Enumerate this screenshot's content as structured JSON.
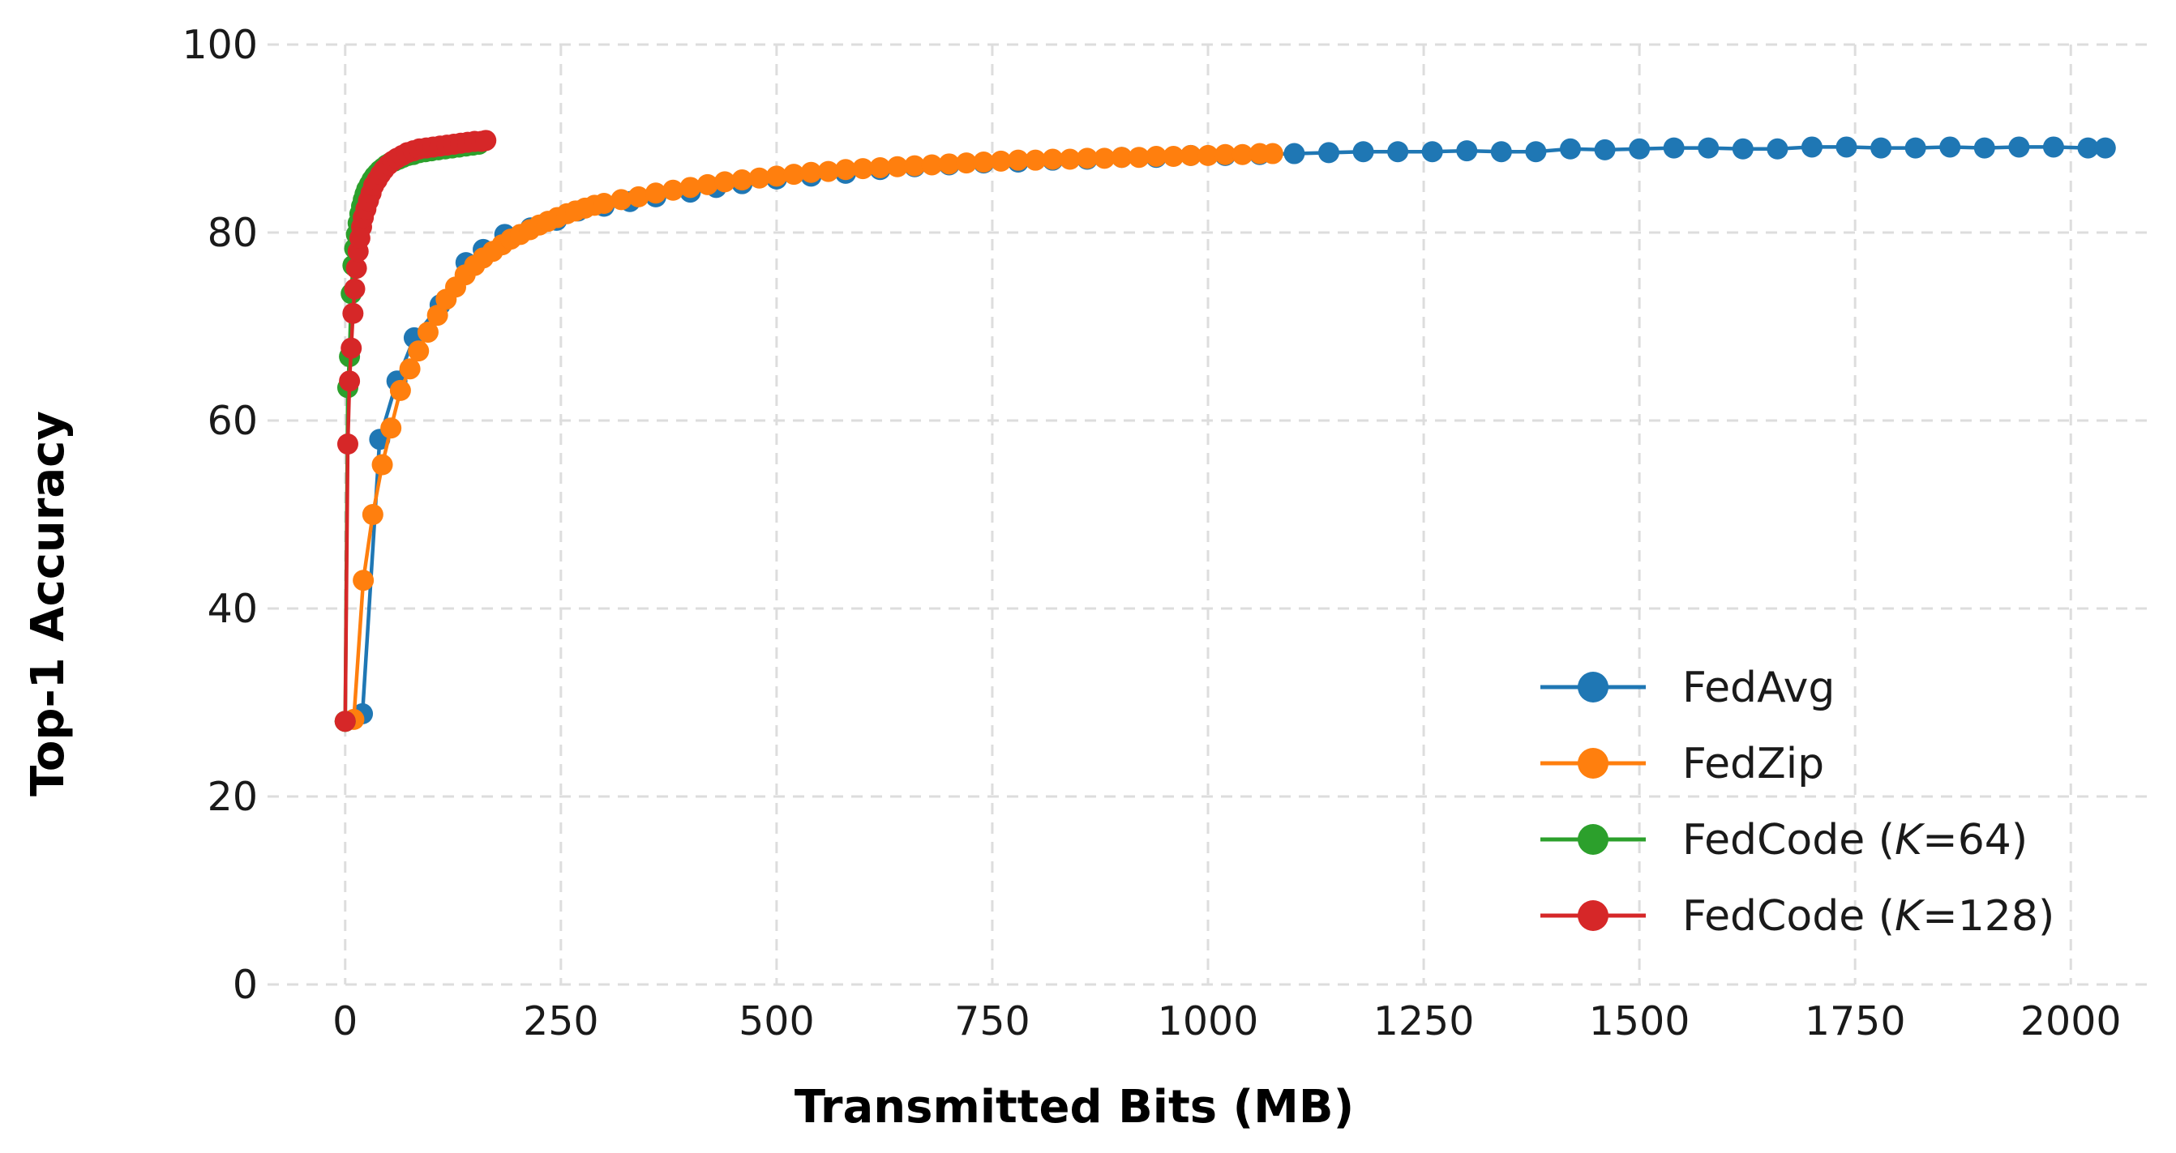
{
  "chart_data": {
    "type": "line",
    "xlabel": "Transmitted Bits (MB)",
    "ylabel": "Top-1 Accuracy",
    "xlim": [
      -90,
      2090
    ],
    "ylim": [
      0,
      100
    ],
    "x_ticks": [
      0,
      250,
      500,
      750,
      1000,
      1250,
      1500,
      1750,
      2000
    ],
    "y_ticks": [
      0,
      20,
      40,
      60,
      80,
      100
    ],
    "grid": true,
    "legend_position": "lower-right",
    "series": [
      {
        "name": "FedAvg",
        "color": "#1f77b4",
        "points": [
          [
            0,
            28
          ],
          [
            20,
            28.8
          ],
          [
            40,
            58
          ],
          [
            60,
            64.2
          ],
          [
            80,
            68.8
          ],
          [
            110,
            72.3
          ],
          [
            140,
            76.8
          ],
          [
            160,
            78.2
          ],
          [
            185,
            79.8
          ],
          [
            215,
            80.5
          ],
          [
            245,
            81.3
          ],
          [
            270,
            82.3
          ],
          [
            300,
            82.8
          ],
          [
            330,
            83.3
          ],
          [
            360,
            83.8
          ],
          [
            400,
            84.3
          ],
          [
            430,
            84.8
          ],
          [
            460,
            85.2
          ],
          [
            500,
            85.7
          ],
          [
            540,
            86
          ],
          [
            580,
            86.3
          ],
          [
            620,
            86.7
          ],
          [
            660,
            87
          ],
          [
            700,
            87.2
          ],
          [
            740,
            87.4
          ],
          [
            780,
            87.5
          ],
          [
            820,
            87.7
          ],
          [
            860,
            87.8
          ],
          [
            900,
            88
          ],
          [
            940,
            88
          ],
          [
            980,
            88.2
          ],
          [
            1020,
            88.2
          ],
          [
            1060,
            88.3
          ],
          [
            1100,
            88.4
          ],
          [
            1140,
            88.5
          ],
          [
            1180,
            88.6
          ],
          [
            1220,
            88.6
          ],
          [
            1260,
            88.6
          ],
          [
            1300,
            88.7
          ],
          [
            1340,
            88.6
          ],
          [
            1380,
            88.6
          ],
          [
            1420,
            88.9
          ],
          [
            1460,
            88.8
          ],
          [
            1500,
            88.9
          ],
          [
            1540,
            89
          ],
          [
            1580,
            89
          ],
          [
            1620,
            88.9
          ],
          [
            1660,
            88.9
          ],
          [
            1700,
            89.1
          ],
          [
            1740,
            89.1
          ],
          [
            1780,
            89
          ],
          [
            1820,
            89
          ],
          [
            1860,
            89.1
          ],
          [
            1900,
            89
          ],
          [
            1940,
            89.1
          ],
          [
            1980,
            89.1
          ],
          [
            2020,
            89
          ],
          [
            2040,
            89
          ]
        ]
      },
      {
        "name": "FedZip",
        "color": "#ff7f0e",
        "points": [
          [
            0,
            28
          ],
          [
            10,
            28.2
          ],
          [
            21,
            43
          ],
          [
            32,
            50
          ],
          [
            43,
            55.3
          ],
          [
            53,
            59.2
          ],
          [
            64,
            63.2
          ],
          [
            75,
            65.5
          ],
          [
            85,
            67.4
          ],
          [
            96,
            69.4
          ],
          [
            107,
            71.2
          ],
          [
            117,
            72.9
          ],
          [
            128,
            74.2
          ],
          [
            139,
            75.5
          ],
          [
            150,
            76.5
          ],
          [
            160,
            77.3
          ],
          [
            171,
            78
          ],
          [
            182,
            78.7
          ],
          [
            192,
            79.3
          ],
          [
            203,
            79.8
          ],
          [
            214,
            80.3
          ],
          [
            225,
            80.8
          ],
          [
            235,
            81.2
          ],
          [
            246,
            81.6
          ],
          [
            257,
            82
          ],
          [
            267,
            82.3
          ],
          [
            278,
            82.6
          ],
          [
            289,
            82.9
          ],
          [
            300,
            83.1
          ],
          [
            320,
            83.5
          ],
          [
            340,
            83.8
          ],
          [
            360,
            84.2
          ],
          [
            380,
            84.5
          ],
          [
            400,
            84.8
          ],
          [
            420,
            85.1
          ],
          [
            440,
            85.4
          ],
          [
            460,
            85.6
          ],
          [
            480,
            85.8
          ],
          [
            500,
            86
          ],
          [
            520,
            86.2
          ],
          [
            540,
            86.4
          ],
          [
            560,
            86.5
          ],
          [
            580,
            86.7
          ],
          [
            600,
            86.8
          ],
          [
            620,
            86.9
          ],
          [
            640,
            87
          ],
          [
            660,
            87.1
          ],
          [
            680,
            87.2
          ],
          [
            700,
            87.3
          ],
          [
            720,
            87.4
          ],
          [
            740,
            87.5
          ],
          [
            760,
            87.6
          ],
          [
            780,
            87.7
          ],
          [
            800,
            87.7
          ],
          [
            820,
            87.8
          ],
          [
            840,
            87.8
          ],
          [
            860,
            87.9
          ],
          [
            880,
            87.9
          ],
          [
            900,
            88
          ],
          [
            920,
            88
          ],
          [
            940,
            88.1
          ],
          [
            960,
            88.1
          ],
          [
            980,
            88.2
          ],
          [
            1000,
            88.2
          ],
          [
            1020,
            88.3
          ],
          [
            1040,
            88.3
          ],
          [
            1060,
            88.4
          ],
          [
            1075,
            88.4
          ]
        ]
      },
      {
        "name": "FedCode (K=64)",
        "color": "#2ca02c",
        "points": [
          [
            0,
            28
          ],
          [
            3,
            63.5
          ],
          [
            5,
            66.8
          ],
          [
            7,
            73.5
          ],
          [
            9,
            76.5
          ],
          [
            11,
            78.3
          ],
          [
            13,
            79.8
          ],
          [
            15,
            81
          ],
          [
            17,
            82
          ],
          [
            19,
            82.8
          ],
          [
            21,
            83.5
          ],
          [
            23,
            84.1
          ],
          [
            25,
            84.6
          ],
          [
            28,
            85.1
          ],
          [
            31,
            85.6
          ],
          [
            34,
            86
          ],
          [
            37,
            86.3
          ],
          [
            40,
            86.6
          ],
          [
            44,
            86.9
          ],
          [
            48,
            87.2
          ],
          [
            52,
            87.4
          ],
          [
            57,
            87.6
          ],
          [
            62,
            87.8
          ],
          [
            67,
            88
          ],
          [
            73,
            88.2
          ],
          [
            79,
            88.3
          ],
          [
            86,
            88.5
          ],
          [
            93,
            88.6
          ],
          [
            100,
            88.7
          ],
          [
            108,
            88.8
          ],
          [
            116,
            88.9
          ],
          [
            124,
            89
          ],
          [
            132,
            89.1
          ],
          [
            140,
            89.2
          ],
          [
            148,
            89.3
          ],
          [
            155,
            89.4
          ]
        ]
      },
      {
        "name": "FedCode (K=128)",
        "color": "#d62728",
        "points": [
          [
            0,
            28
          ],
          [
            3,
            57.5
          ],
          [
            5,
            64.2
          ],
          [
            7,
            67.7
          ],
          [
            9,
            71.4
          ],
          [
            11,
            74
          ],
          [
            13,
            76.2
          ],
          [
            15,
            78
          ],
          [
            17,
            79.4
          ],
          [
            19,
            80.6
          ],
          [
            21,
            81.6
          ],
          [
            24,
            82.5
          ],
          [
            27,
            83.4
          ],
          [
            30,
            84.2
          ],
          [
            33,
            85
          ],
          [
            37,
            85.6
          ],
          [
            41,
            86.2
          ],
          [
            45,
            86.7
          ],
          [
            50,
            87.2
          ],
          [
            55,
            87.6
          ],
          [
            60,
            87.9
          ],
          [
            66,
            88.2
          ],
          [
            72,
            88.5
          ],
          [
            79,
            88.7
          ],
          [
            86,
            88.9
          ],
          [
            94,
            89
          ],
          [
            102,
            89.1
          ],
          [
            110,
            89.2
          ],
          [
            118,
            89.3
          ],
          [
            126,
            89.4
          ],
          [
            134,
            89.5
          ],
          [
            142,
            89.6
          ],
          [
            150,
            89.7
          ],
          [
            158,
            89.7
          ],
          [
            163,
            89.8
          ]
        ]
      }
    ]
  }
}
